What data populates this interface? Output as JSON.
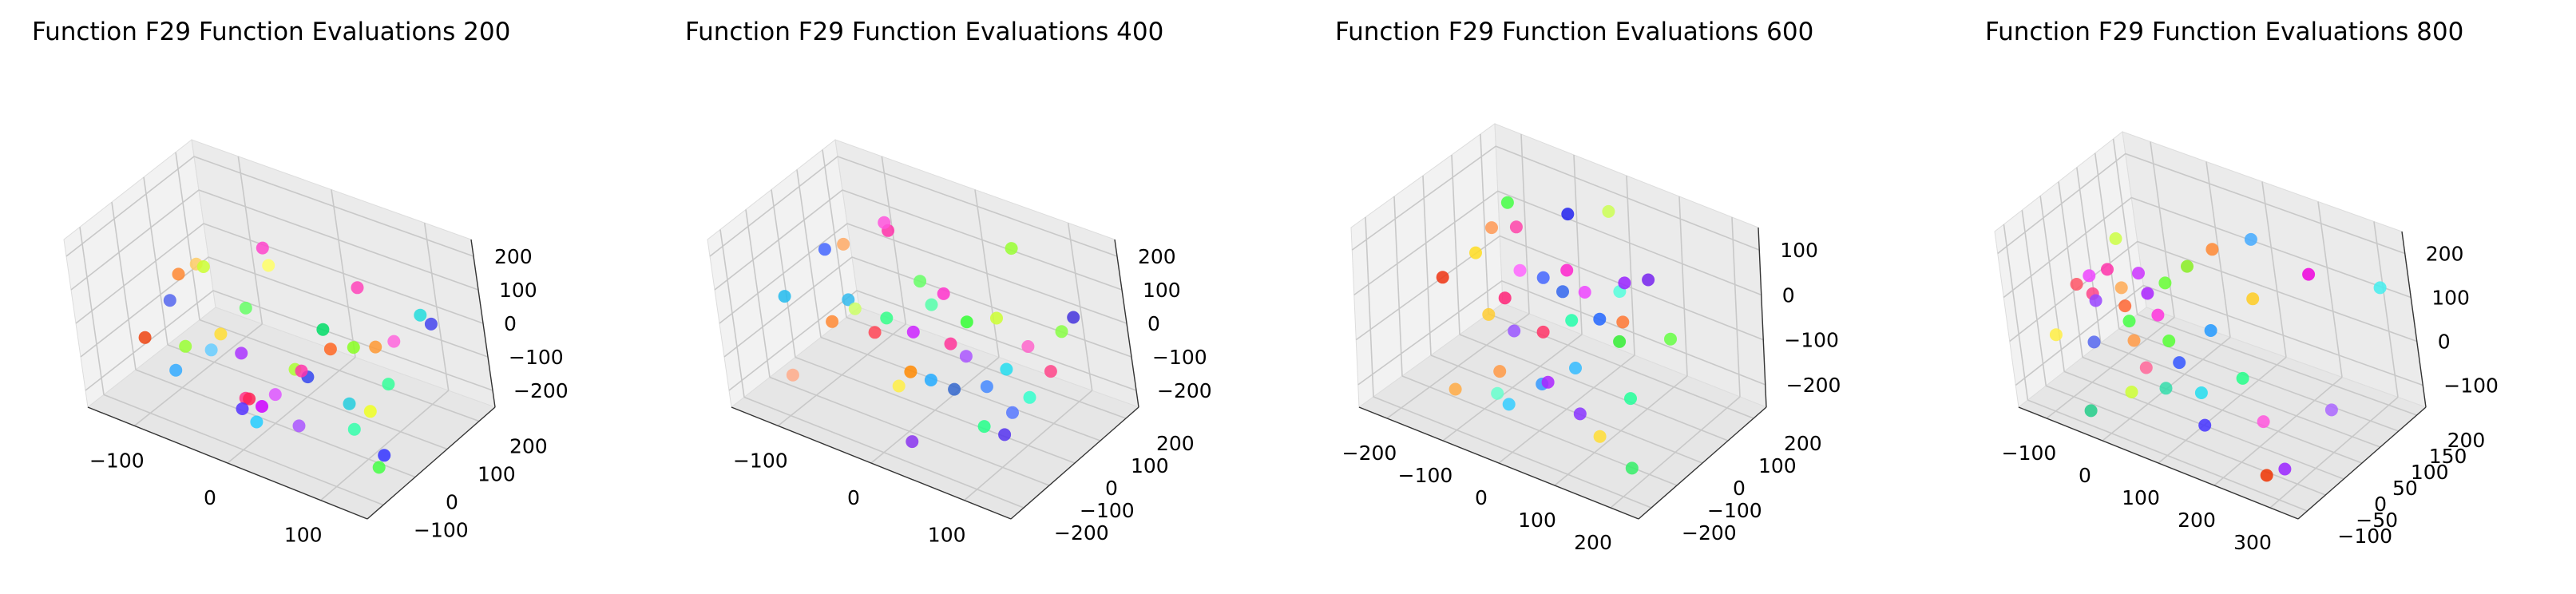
{
  "chart_data": [
    {
      "type": "scatter",
      "title": "Function F29 Function Evaluations 200",
      "x_ticks": [
        "−100",
        "0",
        "100"
      ],
      "y_ticks": [
        "−100",
        "0",
        "100",
        "200"
      ],
      "z_ticks": [
        "−200",
        "−100",
        "0",
        "100",
        "200"
      ],
      "xlim": [
        -160,
        160
      ],
      "ylim": [
        -160,
        260
      ],
      "zlim": [
        -250,
        250
      ],
      "points": [
        {
          "x": -120,
          "y": -60,
          "z": -80,
          "color": "#ee4411"
        },
        {
          "x": -110,
          "y": 40,
          "z": 40,
          "color": "#ff8833"
        },
        {
          "x": -95,
          "y": 60,
          "z": 70,
          "color": "#ffcc66"
        },
        {
          "x": -100,
          "y": -20,
          "z": 20,
          "color": "#5566ee"
        },
        {
          "x": -80,
          "y": -80,
          "z": -120,
          "color": "#33aaff"
        },
        {
          "x": -60,
          "y": -90,
          "z": -20,
          "color": "#99ff33"
        },
        {
          "x": -70,
          "y": 20,
          "z": 120,
          "color": "#ccff33"
        },
        {
          "x": -50,
          "y": -40,
          "z": -60,
          "color": "#66ccff"
        },
        {
          "x": -40,
          "y": -30,
          "z": -10,
          "color": "#ffdd33"
        },
        {
          "x": -30,
          "y": 30,
          "z": 30,
          "color": "#66ff66"
        },
        {
          "x": -20,
          "y": 80,
          "z": 180,
          "color": "#ff44cc"
        },
        {
          "x": -20,
          "y": 90,
          "z": 120,
          "color": "#ffff66"
        },
        {
          "x": -10,
          "y": -50,
          "z": -20,
          "color": "#aa33ff"
        },
        {
          "x": 0,
          "y": -80,
          "z": -120,
          "color": "#ff3388"
        },
        {
          "x": 10,
          "y": -60,
          "z": -150,
          "color": "#cc00ff"
        },
        {
          "x": 0,
          "y": -70,
          "z": -130,
          "color": "#ff2255"
        },
        {
          "x": -10,
          "y": -70,
          "z": -170,
          "color": "#5533ff"
        },
        {
          "x": 20,
          "y": -40,
          "z": -120,
          "color": "#dd55ff"
        },
        {
          "x": 40,
          "y": -20,
          "z": -40,
          "color": "#aaff33"
        },
        {
          "x": 50,
          "y": -10,
          "z": -60,
          "color": "#3344ee"
        },
        {
          "x": 60,
          "y": 30,
          "z": 60,
          "color": "#00dd66"
        },
        {
          "x": 70,
          "y": 20,
          "z": 20,
          "color": "#ff6622"
        },
        {
          "x": 80,
          "y": 100,
          "z": 150,
          "color": "#ff44bb"
        },
        {
          "x": 90,
          "y": 40,
          "z": 30,
          "color": "#88ff22"
        },
        {
          "x": 100,
          "y": -20,
          "z": -80,
          "color": "#22ccdd"
        },
        {
          "x": 110,
          "y": -40,
          "z": -130,
          "color": "#33ffaa"
        },
        {
          "x": 120,
          "y": -10,
          "z": -90,
          "color": "#eeff22"
        },
        {
          "x": 130,
          "y": 30,
          "z": -30,
          "color": "#33ff99"
        },
        {
          "x": 140,
          "y": 40,
          "z": 100,
          "color": "#ff66dd"
        },
        {
          "x": 150,
          "y": -60,
          "z": -150,
          "color": "#3333ff"
        },
        {
          "x": 150,
          "y": -80,
          "z": -170,
          "color": "#44ff44"
        },
        {
          "x": 60,
          "y": -80,
          "z": -140,
          "color": "#aa55ff"
        },
        {
          "x": 130,
          "y": 180,
          "z": 30,
          "color": "#4444ee"
        },
        {
          "x": 100,
          "y": 80,
          "z": 10,
          "color": "#ff9933"
        },
        {
          "x": 110,
          "y": 200,
          "z": 20,
          "color": "#22dddd"
        },
        {
          "x": 60,
          "y": -50,
          "z": 0,
          "color": "#ff33aa"
        },
        {
          "x": 30,
          "y": -130,
          "z": -120,
          "color": "#22ccff"
        }
      ]
    },
    {
      "type": "scatter",
      "title": "Function F29 Function Evaluations 400",
      "x_ticks": [
        "−100",
        "0",
        "100"
      ],
      "y_ticks": [
        "−200",
        "−100",
        "0",
        "100",
        "200"
      ],
      "z_ticks": [
        "−200",
        "−100",
        "0",
        "100",
        "200"
      ],
      "xlim": [
        -160,
        160
      ],
      "ylim": [
        -260,
        260
      ],
      "zlim": [
        -280,
        220
      ],
      "points": [
        {
          "x": -150,
          "y": -40,
          "z": -80,
          "color": "#22bbee"
        },
        {
          "x": -120,
          "y": 40,
          "z": 40,
          "color": "#4466ff"
        },
        {
          "x": -110,
          "y": 80,
          "z": 40,
          "color": "#ffaa66"
        },
        {
          "x": -90,
          "y": -60,
          "z": -80,
          "color": "#ff8833"
        },
        {
          "x": -80,
          "y": -20,
          "z": -30,
          "color": "#33bbee"
        },
        {
          "x": -60,
          "y": 100,
          "z": 120,
          "color": "#ff33aa"
        },
        {
          "x": -70,
          "y": -30,
          "z": -40,
          "color": "#ccff66"
        },
        {
          "x": -40,
          "y": -60,
          "z": -60,
          "color": "#ff4455"
        },
        {
          "x": -50,
          "y": 60,
          "z": 180,
          "color": "#ff55dd"
        },
        {
          "x": -30,
          "y": -40,
          "z": -20,
          "color": "#33ff88"
        },
        {
          "x": -20,
          "y": 70,
          "z": 30,
          "color": "#66ff66"
        },
        {
          "x": -10,
          "y": -10,
          "z": -60,
          "color": "#cc22ff"
        },
        {
          "x": 0,
          "y": -120,
          "z": -140,
          "color": "#ffee44"
        },
        {
          "x": 0,
          "y": 40,
          "z": 0,
          "color": "#55ffaa"
        },
        {
          "x": 10,
          "y": -100,
          "z": -100,
          "color": "#ff8800"
        },
        {
          "x": 20,
          "y": 30,
          "z": 60,
          "color": "#ff33cc"
        },
        {
          "x": 30,
          "y": -90,
          "z": -110,
          "color": "#22aaff"
        },
        {
          "x": 40,
          "y": -30,
          "z": -30,
          "color": "#ff3399"
        },
        {
          "x": 50,
          "y": 10,
          "z": 20,
          "color": "#33ff33"
        },
        {
          "x": 60,
          "y": -40,
          "z": -40,
          "color": "#aa55ff"
        },
        {
          "x": 70,
          "y": 60,
          "z": 20,
          "color": "#ccff33"
        },
        {
          "x": 80,
          "y": 120,
          "z": 200,
          "color": "#99ff33"
        },
        {
          "x": 90,
          "y": -70,
          "z": -80,
          "color": "#4488ff"
        },
        {
          "x": 100,
          "y": -20,
          "z": -50,
          "color": "#22ddee"
        },
        {
          "x": 110,
          "y": 40,
          "z": -10,
          "color": "#ff66cc"
        },
        {
          "x": 120,
          "y": -80,
          "z": -120,
          "color": "#5577ff"
        },
        {
          "x": 130,
          "y": -40,
          "z": -90,
          "color": "#33ffcc"
        },
        {
          "x": 140,
          "y": 20,
          "z": -40,
          "color": "#ff4488"
        },
        {
          "x": 150,
          "y": 100,
          "z": 80,
          "color": "#4433dd"
        },
        {
          "x": 140,
          "y": 80,
          "z": 40,
          "color": "#88ff44"
        },
        {
          "x": 120,
          "y": -120,
          "z": -160,
          "color": "#5533ee"
        },
        {
          "x": 100,
          "y": -130,
          "z": -150,
          "color": "#22ff88"
        },
        {
          "x": 40,
          "y": -220,
          "z": -200,
          "color": "#8833ee"
        },
        {
          "x": -100,
          "y": -200,
          "z": -160,
          "color": "#ffaa88"
        },
        {
          "x": 60,
          "y": -100,
          "z": -100,
          "color": "#3366cc"
        }
      ]
    },
    {
      "type": "scatter",
      "title": "Function F29 Function Evaluations 600",
      "x_ticks": [
        "−200",
        "−100",
        "0",
        "100",
        "200"
      ],
      "y_ticks": [
        "−200",
        "−100",
        "0",
        "100",
        "200"
      ],
      "z_ticks": [
        "−200",
        "−100",
        "0",
        "100"
      ],
      "xlim": [
        -230,
        230
      ],
      "ylim": [
        -260,
        260
      ],
      "zlim": [
        -240,
        180
      ],
      "points": [
        {
          "x": -200,
          "y": 20,
          "z": -60,
          "color": "#ee3311"
        },
        {
          "x": -160,
          "y": 60,
          "z": 0,
          "color": "#ffdd22"
        },
        {
          "x": -140,
          "y": 80,
          "z": 60,
          "color": "#ff9955"
        },
        {
          "x": -120,
          "y": 100,
          "z": 120,
          "color": "#44ff44"
        },
        {
          "x": -100,
          "y": -40,
          "z": -60,
          "color": "#ffcc33"
        },
        {
          "x": -90,
          "y": 60,
          "z": 100,
          "color": "#ff44aa"
        },
        {
          "x": -80,
          "y": -20,
          "z": -20,
          "color": "#ff2277"
        },
        {
          "x": -70,
          "y": 20,
          "z": 30,
          "color": "#ff66ff"
        },
        {
          "x": -60,
          "y": -100,
          "z": -140,
          "color": "#ff9944"
        },
        {
          "x": -50,
          "y": -60,
          "z": -60,
          "color": "#9955ff"
        },
        {
          "x": -40,
          "y": 40,
          "z": 20,
          "color": "#4466ff"
        },
        {
          "x": -30,
          "y": -140,
          "z": -180,
          "color": "#33ccff"
        },
        {
          "x": -20,
          "y": 100,
          "z": 150,
          "color": "#2222ee"
        },
        {
          "x": -10,
          "y": -40,
          "z": -50,
          "color": "#ff3366"
        },
        {
          "x": 0,
          "y": 40,
          "z": 60,
          "color": "#ff22cc"
        },
        {
          "x": 10,
          "y": -100,
          "z": -130,
          "color": "#3399ff"
        },
        {
          "x": 20,
          "y": 60,
          "z": 10,
          "color": "#ee44ff"
        },
        {
          "x": 30,
          "y": -20,
          "z": -10,
          "color": "#22ffaa"
        },
        {
          "x": 40,
          "y": 120,
          "z": 180,
          "color": "#ccff55"
        },
        {
          "x": 50,
          "y": -60,
          "z": -90,
          "color": "#33bbff"
        },
        {
          "x": 60,
          "y": 20,
          "z": -10,
          "color": "#2266ff"
        },
        {
          "x": 70,
          "y": 80,
          "z": 30,
          "color": "#55ffdd"
        },
        {
          "x": 80,
          "y": -120,
          "z": -150,
          "color": "#8833ff"
        },
        {
          "x": 90,
          "y": 40,
          "z": -10,
          "color": "#ff7733"
        },
        {
          "x": 100,
          "y": 0,
          "z": -30,
          "color": "#33ee33"
        },
        {
          "x": 110,
          "y": 100,
          "z": 70,
          "color": "#7722ee"
        },
        {
          "x": 120,
          "y": -140,
          "z": -170,
          "color": "#ffdd33"
        },
        {
          "x": 140,
          "y": -60,
          "z": -110,
          "color": "#22ff99"
        },
        {
          "x": 160,
          "y": 60,
          "z": -20,
          "color": "#66ff44"
        },
        {
          "x": 180,
          "y": -160,
          "z": -200,
          "color": "#33ee66"
        },
        {
          "x": -40,
          "y": -160,
          "z": -150,
          "color": "#66ffcc"
        },
        {
          "x": 20,
          "y": -100,
          "z": -120,
          "color": "#aa22ff"
        },
        {
          "x": -110,
          "y": -160,
          "z": -180,
          "color": "#ffaa44"
        },
        {
          "x": 0,
          "y": 20,
          "z": 20,
          "color": "#3366ee"
        },
        {
          "x": 70,
          "y": 100,
          "z": 40,
          "color": "#9922ff"
        }
      ]
    },
    {
      "type": "scatter",
      "title": "Function F29 Function Evaluations 800",
      "x_ticks": [
        "−100",
        "0",
        "100",
        "200",
        "300"
      ],
      "y_ticks": [
        "−100",
        "−50",
        "0",
        "50",
        "100",
        "150",
        "200"
      ],
      "z_ticks": [
        "−100",
        "0",
        "100",
        "200"
      ],
      "xlim": [
        -160,
        340
      ],
      "ylim": [
        -120,
        220
      ],
      "zlim": [
        -160,
        260
      ],
      "points": [
        {
          "x": -150,
          "y": -20,
          "z": -60,
          "color": "#ffee44"
        },
        {
          "x": -130,
          "y": 20,
          "z": 40,
          "color": "#ff5566"
        },
        {
          "x": -120,
          "y": 40,
          "z": 50,
          "color": "#ee44ff"
        },
        {
          "x": -110,
          "y": 30,
          "z": 20,
          "color": "#ff4488"
        },
        {
          "x": -100,
          "y": 60,
          "z": 60,
          "color": "#ff33aa"
        },
        {
          "x": -90,
          "y": 10,
          "z": 30,
          "color": "#9944ff"
        },
        {
          "x": -80,
          "y": -20,
          "z": -40,
          "color": "#5566ee"
        },
        {
          "x": -70,
          "y": 50,
          "z": 40,
          "color": "#ffaa55"
        },
        {
          "x": -60,
          "y": 40,
          "z": 10,
          "color": "#ff6633"
        },
        {
          "x": -50,
          "y": 70,
          "z": 70,
          "color": "#cc33ff"
        },
        {
          "x": -40,
          "y": 20,
          "z": 0,
          "color": "#44ff44"
        },
        {
          "x": -30,
          "y": 60,
          "z": 40,
          "color": "#aa22ff"
        },
        {
          "x": -20,
          "y": 0,
          "z": -20,
          "color": "#ff9944"
        },
        {
          "x": -10,
          "y": 80,
          "z": 60,
          "color": "#66ff33"
        },
        {
          "x": 0,
          "y": 40,
          "z": 20,
          "color": "#ff33dd"
        },
        {
          "x": 10,
          "y": -60,
          "z": -80,
          "color": "#ccff33"
        },
        {
          "x": 20,
          "y": 100,
          "z": 100,
          "color": "#88ee22"
        },
        {
          "x": 30,
          "y": 20,
          "z": -10,
          "color": "#55ff33"
        },
        {
          "x": 40,
          "y": 140,
          "z": 120,
          "color": "#ff8833"
        },
        {
          "x": 60,
          "y": -40,
          "z": -60,
          "color": "#33ddaa"
        },
        {
          "x": 80,
          "y": 60,
          "z": 10,
          "color": "#2299ff"
        },
        {
          "x": 100,
          "y": 160,
          "z": 160,
          "color": "#44aaff"
        },
        {
          "x": 110,
          "y": -20,
          "z": -60,
          "color": "#22ddee"
        },
        {
          "x": 120,
          "y": 120,
          "z": 60,
          "color": "#ffcc22"
        },
        {
          "x": 140,
          "y": -60,
          "z": -90,
          "color": "#4433ff"
        },
        {
          "x": 160,
          "y": 20,
          "z": -30,
          "color": "#22ff88"
        },
        {
          "x": 200,
          "y": 160,
          "z": 130,
          "color": "#ee00dd"
        },
        {
          "x": 220,
          "y": -20,
          "z": -70,
          "color": "#ff55dd"
        },
        {
          "x": 260,
          "y": -80,
          "z": -130,
          "color": "#ee3300"
        },
        {
          "x": 280,
          "y": -60,
          "z": -120,
          "color": "#9922ff"
        },
        {
          "x": 300,
          "y": 200,
          "z": 120,
          "color": "#44eeee"
        },
        {
          "x": 320,
          "y": 20,
          "z": -20,
          "color": "#aa66ff"
        },
        {
          "x": -40,
          "y": -100,
          "z": -120,
          "color": "#22cc88"
        },
        {
          "x": 20,
          "y": -30,
          "z": -40,
          "color": "#ff6699"
        },
        {
          "x": 60,
          "y": 0,
          "z": -30,
          "color": "#3355ff"
        },
        {
          "x": -100,
          "y": 90,
          "z": 110,
          "color": "#ccff44"
        }
      ]
    }
  ]
}
